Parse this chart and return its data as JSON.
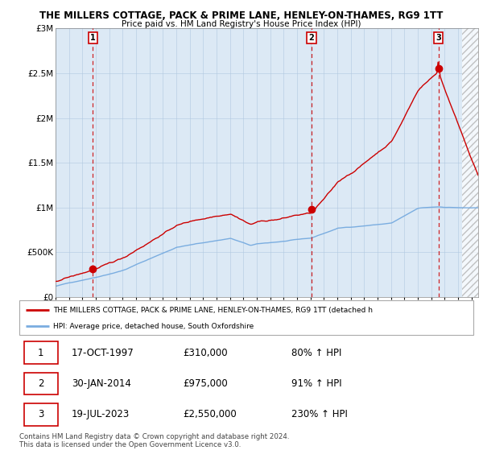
{
  "title": "THE MILLERS COTTAGE, PACK & PRIME LANE, HENLEY-ON-THAMES, RG9 1TT",
  "subtitle": "Price paid vs. HM Land Registry's House Price Index (HPI)",
  "ylim": [
    0,
    3000000
  ],
  "yticks": [
    0,
    500000,
    1000000,
    1500000,
    2000000,
    2500000,
    3000000
  ],
  "ytick_labels": [
    "£0",
    "£500K",
    "£1M",
    "£1.5M",
    "£2M",
    "£2.5M",
    "£3M"
  ],
  "xmin": 1995.0,
  "xmax": 2026.5,
  "sale_year_decimals": [
    1997.79,
    2014.08,
    2023.54
  ],
  "sale_prices": [
    310000,
    975000,
    2550000
  ],
  "sale_labels": [
    "1",
    "2",
    "3"
  ],
  "red_color": "#cc0000",
  "blue_color": "#7aade0",
  "chart_bg": "#dce9f5",
  "legend_label_red": "THE MILLERS COTTAGE, PACK & PRIME LANE, HENLEY-ON-THAMES, RG9 1TT (detached h",
  "legend_label_blue": "HPI: Average price, detached house, South Oxfordshire",
  "table_rows": [
    [
      "1",
      "17-OCT-1997",
      "£310,000",
      "80% ↑ HPI"
    ],
    [
      "2",
      "30-JAN-2014",
      "£975,000",
      "91% ↑ HPI"
    ],
    [
      "3",
      "19-JUL-2023",
      "£2,550,000",
      "230% ↑ HPI"
    ]
  ],
  "footnote": "Contains HM Land Registry data © Crown copyright and database right 2024.\nThis data is licensed under the Open Government Licence v3.0.",
  "background_color": "#ffffff",
  "grid_color": "#b0c8e0"
}
